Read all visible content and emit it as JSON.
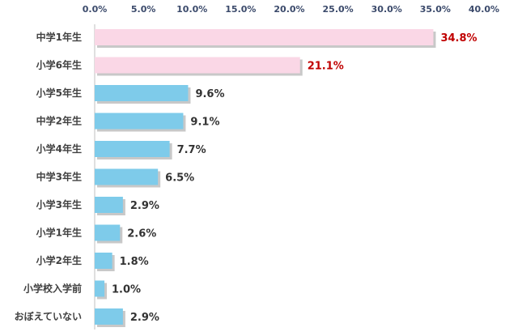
{
  "chart_data": {
    "type": "bar",
    "orientation": "horizontal",
    "title": "",
    "xlabel": "",
    "ylabel": "",
    "xlim": [
      0,
      40
    ],
    "x_ticks": [
      "0.0%",
      "5.0%",
      "10.0%",
      "15.0%",
      "20.0%",
      "25.0%",
      "30.0%",
      "35.0%",
      "40.0%"
    ],
    "grid": false,
    "legend": "none",
    "categories": [
      "中学1年生",
      "小学6年生",
      "小学5年生",
      "中学2年生",
      "小学4年生",
      "中学3年生",
      "小学3年生",
      "小学1年生",
      "小学2年生",
      "小学校入学前",
      "おぼえていない"
    ],
    "values": [
      34.8,
      21.1,
      9.6,
      9.1,
      7.7,
      6.5,
      2.9,
      2.6,
      1.8,
      1.0,
      2.9
    ],
    "value_labels": [
      "34.8%",
      "21.1%",
      "9.6%",
      "9.1%",
      "7.7%",
      "6.5%",
      "2.9%",
      "2.6%",
      "1.8%",
      "1.0%",
      "2.9%"
    ],
    "highlighted_categories": [
      "中学1年生",
      "小学6年生"
    ],
    "colors": {
      "bar": "#7ecbea",
      "highlight_bar": "#fad7e6",
      "highlight_label": "#c00000",
      "label": "#333333",
      "tick_label": "#3b4a6b",
      "axis": "#bfbfbf",
      "shadow": "#c8c8c8"
    }
  }
}
